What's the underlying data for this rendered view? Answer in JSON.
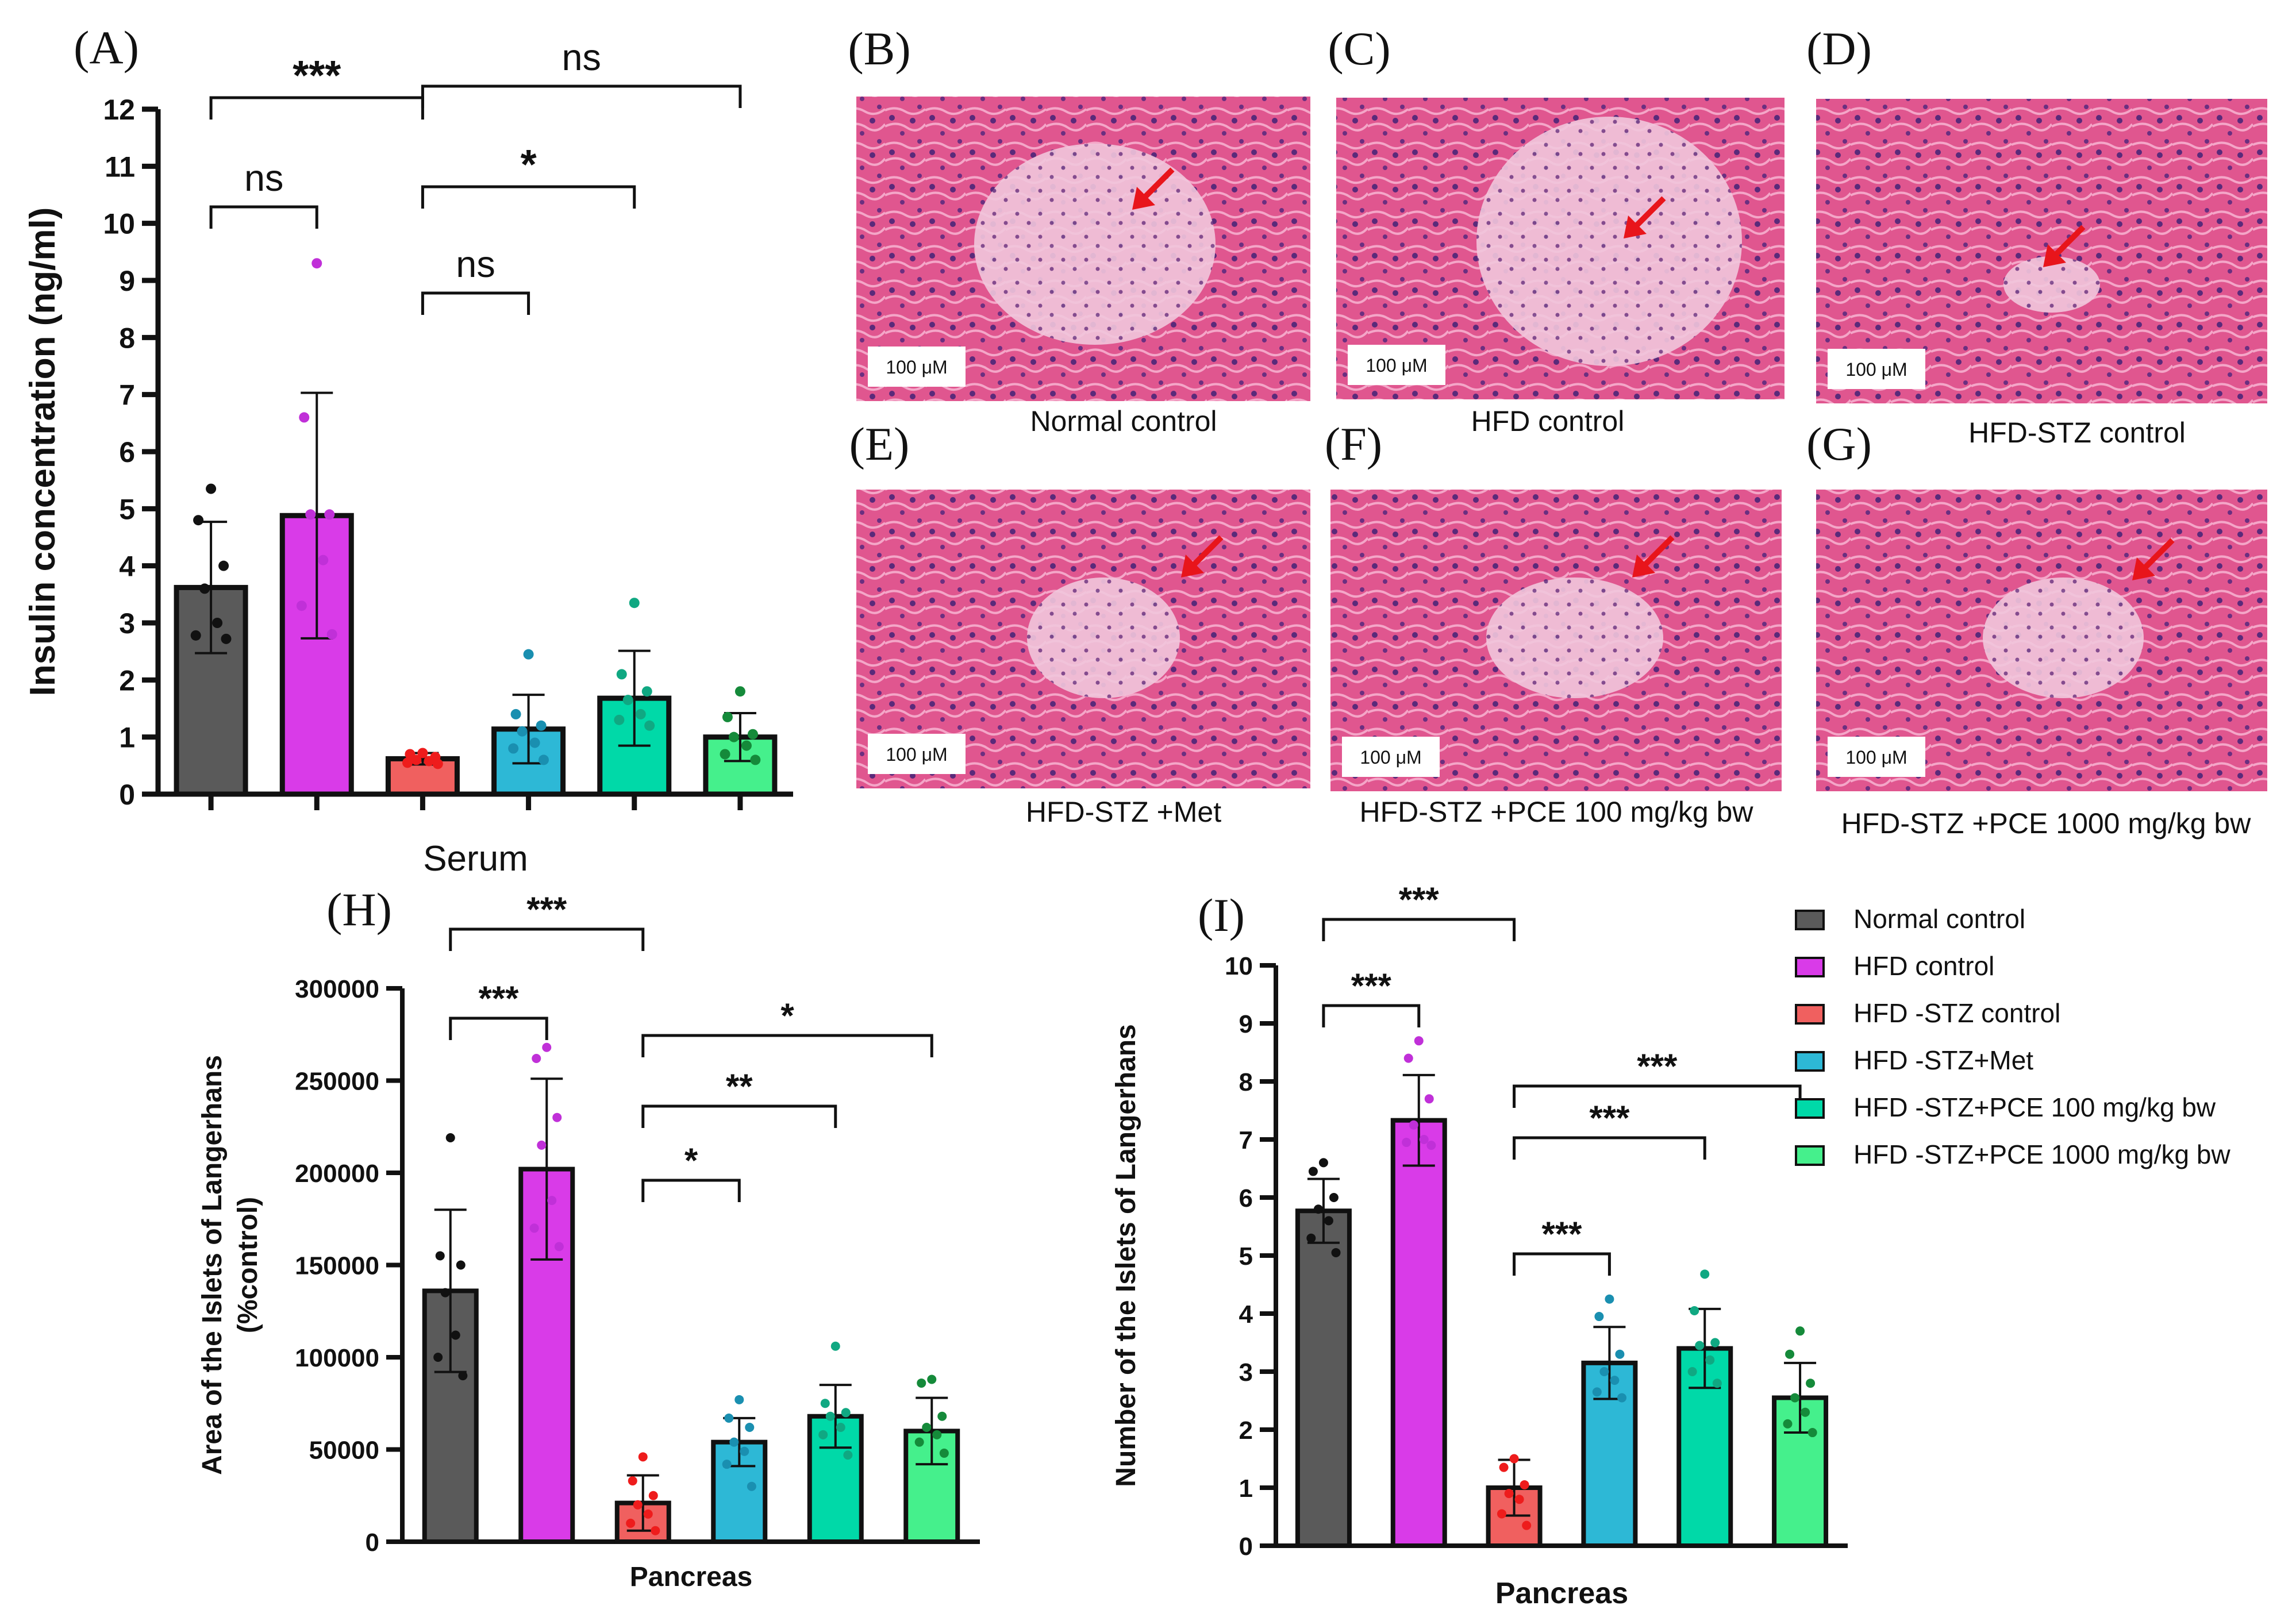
{
  "group_colors": [
    "#5a5a5a",
    "#d93be8",
    "#f0605f",
    "#2db8d6",
    "#00d9a8",
    "#45f08c"
  ],
  "dot_colors": [
    "#111111",
    "#c030d8",
    "#ee1c1c",
    "#1a8fb0",
    "#10a882",
    "#158a3a"
  ],
  "chart_data": [
    {
      "id": "A",
      "type": "bar",
      "panel_label": "(A)",
      "xlabel": "Serum",
      "ylabel": "Insulin concentration (ng/ml)",
      "ylim": [
        0,
        12
      ],
      "yticks": [
        "0",
        "1",
        "2",
        "3",
        "4",
        "5",
        "6",
        "7",
        "8",
        "9",
        "10",
        "11",
        "12"
      ],
      "values": [
        3.62,
        4.88,
        0.62,
        1.14,
        1.68,
        1.0
      ],
      "errors": [
        1.15,
        2.15,
        0.1,
        0.6,
        0.83,
        0.42
      ],
      "points": [
        [
          5.35,
          4.8,
          4.0,
          3.6,
          3.0,
          2.78,
          2.72
        ],
        [
          9.3,
          6.6,
          4.9,
          4.9,
          4.1,
          3.3,
          2.8
        ],
        [
          0.72,
          0.7,
          0.65,
          0.6,
          0.58,
          0.55,
          0.53
        ],
        [
          2.45,
          1.4,
          1.2,
          1.1,
          0.9,
          0.8,
          0.6
        ],
        [
          3.35,
          2.1,
          1.8,
          1.65,
          1.4,
          1.3,
          1.2
        ],
        [
          1.8,
          1.35,
          1.05,
          1.0,
          0.85,
          0.7,
          0.6
        ]
      ],
      "significance": [
        {
          "from": 0,
          "to": 1,
          "label": "ns"
        },
        {
          "from": 0,
          "to": 2,
          "label": "***"
        },
        {
          "from": 2,
          "to": 3,
          "label": "ns"
        },
        {
          "from": 2,
          "to": 4,
          "label": "*"
        },
        {
          "from": 2,
          "to": 5,
          "label": "ns"
        }
      ]
    },
    {
      "id": "H",
      "type": "bar",
      "panel_label": "(H)",
      "xlabel": "Pancreas",
      "ylabel": "Area of the Islets of Langerhans",
      "ylabel2": "(%control)",
      "ylim": [
        0,
        300000
      ],
      "yticks": [
        "0",
        "50000",
        "100000",
        "150000",
        "200000",
        "250000",
        "300000"
      ],
      "values": [
        136000,
        202000,
        21000,
        54000,
        68000,
        60000
      ],
      "errors": [
        44000,
        49000,
        15000,
        13000,
        17000,
        18000
      ],
      "points": [
        [
          219000,
          155000,
          150000,
          135000,
          112000,
          100000,
          90000
        ],
        [
          268000,
          262000,
          230000,
          215000,
          185000,
          170000,
          160000
        ],
        [
          46000,
          33000,
          25000,
          20000,
          15000,
          10000,
          6000
        ],
        [
          77000,
          67000,
          62000,
          54000,
          49000,
          42000,
          30000
        ],
        [
          106000,
          75000,
          70000,
          68000,
          62000,
          58000,
          47000
        ],
        [
          88000,
          86000,
          68000,
          62000,
          58000,
          54000,
          48000
        ]
      ],
      "significance": [
        {
          "from": 0,
          "to": 1,
          "label": "***"
        },
        {
          "from": 0,
          "to": 2,
          "label": "***"
        },
        {
          "from": 2,
          "to": 3,
          "label": "*"
        },
        {
          "from": 2,
          "to": 4,
          "label": "**"
        },
        {
          "from": 2,
          "to": 5,
          "label": "*"
        }
      ]
    },
    {
      "id": "I",
      "type": "bar",
      "panel_label": "(I)",
      "xlabel": "Pancreas",
      "ylabel": "Number of the Islets of Langerhans",
      "ylim": [
        0,
        10
      ],
      "yticks": [
        "0",
        "1",
        "2",
        "3",
        "4",
        "5",
        "6",
        "7",
        "8",
        "9",
        "10"
      ],
      "values": [
        5.77,
        7.33,
        1.0,
        3.15,
        3.4,
        2.55
      ],
      "errors": [
        0.55,
        0.78,
        0.48,
        0.62,
        0.68,
        0.6
      ],
      "points": [
        [
          6.6,
          6.45,
          6.0,
          5.8,
          5.6,
          5.3,
          5.05
        ],
        [
          8.7,
          8.4,
          7.7,
          7.25,
          7.0,
          6.95,
          6.9
        ],
        [
          1.5,
          1.35,
          1.05,
          0.9,
          0.8,
          0.55,
          0.35
        ],
        [
          4.25,
          3.95,
          3.3,
          3.0,
          2.85,
          2.65,
          2.55
        ],
        [
          4.68,
          4.05,
          3.5,
          3.45,
          3.2,
          3.0,
          2.8
        ],
        [
          3.7,
          3.3,
          2.8,
          2.55,
          2.3,
          2.1,
          1.95
        ]
      ],
      "significance": [
        {
          "from": 0,
          "to": 1,
          "label": "***"
        },
        {
          "from": 0,
          "to": 2,
          "label": "***"
        },
        {
          "from": 2,
          "to": 3,
          "label": "***"
        },
        {
          "from": 2,
          "to": 4,
          "label": "***"
        },
        {
          "from": 2,
          "to": 5,
          "label": "***"
        }
      ]
    }
  ],
  "micrographs": [
    {
      "label": "(B)",
      "caption": "Normal control",
      "scale": "100 μM",
      "islet": "large"
    },
    {
      "label": "(C)",
      "caption": "HFD control",
      "scale": "100 μM",
      "islet": "xlarge"
    },
    {
      "label": "(D)",
      "caption": "HFD-STZ control",
      "scale": "100 μM",
      "islet": "small"
    },
    {
      "label": "(E)",
      "caption": "HFD-STZ +Met",
      "scale": "100 μM",
      "islet": "medium"
    },
    {
      "label": "(F)",
      "caption": "HFD-STZ +PCE 100 mg/kg bw",
      "scale": "100 μM",
      "islet": "medium"
    },
    {
      "label": "(G)",
      "caption": "HFD-STZ +PCE 1000 mg/kg bw",
      "scale": "100 μM",
      "islet": "medium"
    }
  ],
  "legend": [
    "Normal control",
    "HFD control",
    "HFD -STZ control",
    "HFD -STZ+Met",
    "HFD -STZ+PCE 100 mg/kg bw",
    "HFD -STZ+PCE 1000 mg/kg bw"
  ]
}
